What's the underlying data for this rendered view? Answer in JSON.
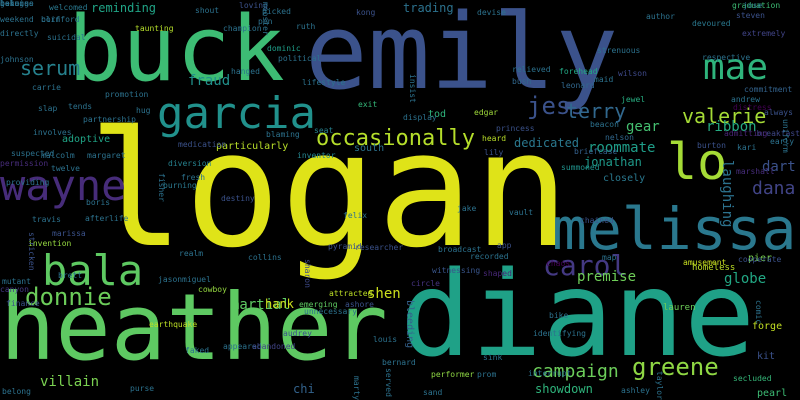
{
  "words": [
    {
      "text": "logan",
      "color": "#dfe318",
      "vertical": false
    },
    {
      "text": "diane",
      "color": "#1fa187",
      "vertical": false
    },
    {
      "text": "emily",
      "color": "#3b528b",
      "vertical": false
    },
    {
      "text": "heather",
      "color": "#5ec962",
      "vertical": false
    },
    {
      "text": "buck",
      "color": "#3dbc74",
      "vertical": false
    },
    {
      "text": "melissa",
      "color": "#2a788e",
      "vertical": false
    },
    {
      "text": "garcia",
      "color": "#21918c",
      "vertical": false
    },
    {
      "text": "wayne",
      "color": "#472c7a",
      "vertical": false
    },
    {
      "text": "bala",
      "color": "#5ec962",
      "vertical": false
    },
    {
      "text": "lo",
      "color": "#a5db36",
      "vertical": false
    },
    {
      "text": "mae",
      "color": "#2fb47c",
      "vertical": false
    },
    {
      "text": "carol",
      "color": "#443983",
      "vertical": false
    },
    {
      "text": "greene",
      "color": "#8fd744",
      "vertical": false
    },
    {
      "text": "donnie",
      "color": "#6ccd5a",
      "vertical": false
    },
    {
      "text": "occasionally",
      "color": "#b5de2b",
      "vertical": false
    },
    {
      "text": "jess",
      "color": "#3b528b",
      "vertical": false
    },
    {
      "text": "terry",
      "color": "#31688e",
      "vertical": false
    },
    {
      "text": "valerie",
      "color": "#a5db36",
      "vertical": false
    },
    {
      "text": "dana",
      "color": "#414487",
      "vertical": false
    },
    {
      "text": "serum",
      "color": "#26828e",
      "vertical": false
    },
    {
      "text": "laughing",
      "color": "#2c728e",
      "vertical": true
    },
    {
      "text": "campaign",
      "color": "#6ccd5a",
      "vertical": false
    },
    {
      "text": "villain",
      "color": "#7ad151",
      "vertical": false
    },
    {
      "text": "martial",
      "color": "#5ec962",
      "vertical": false
    },
    {
      "text": "shen",
      "color": "#cde11d",
      "vertical": false
    },
    {
      "text": "dart",
      "color": "#3b528b",
      "vertical": false
    },
    {
      "text": "fraud",
      "color": "#21918c",
      "vertical": false
    },
    {
      "text": "roommate",
      "color": "#1f9e89",
      "vertical": false
    },
    {
      "text": "jonathan",
      "color": "#1f9a8a",
      "vertical": false
    },
    {
      "text": "dedicated",
      "color": "#2a788e",
      "vertical": false
    },
    {
      "text": "premise",
      "color": "#6ece58",
      "vertical": false
    },
    {
      "text": "globe",
      "color": "#22a884",
      "vertical": false
    },
    {
      "text": "gear",
      "color": "#44bf70",
      "vertical": false
    },
    {
      "text": "ribbon",
      "color": "#25ab82",
      "vertical": false
    },
    {
      "text": "trading",
      "color": "#2c728e",
      "vertical": false
    },
    {
      "text": "reminding",
      "color": "#20a486",
      "vertical": false
    },
    {
      "text": "showdown",
      "color": "#2fb47c",
      "vertical": false
    },
    {
      "text": "hank",
      "color": "#cde11d",
      "vertical": false
    },
    {
      "text": "chi",
      "color": "#33638d",
      "vertical": false
    },
    {
      "text": "bleeding",
      "color": "#34618d",
      "vertical": true
    },
    {
      "text": "particularly",
      "color": "#b8de29",
      "vertical": false
    },
    {
      "text": "adoptive",
      "color": "#20a486",
      "vertical": false
    },
    {
      "text": "welcomed",
      "color": "#2a788e",
      "vertical": false
    },
    {
      "text": "dominic",
      "color": "#1f9e89",
      "vertical": false
    },
    {
      "text": "marshall",
      "color": "#472d7b",
      "vertical": false
    },
    {
      "text": "closely",
      "color": "#2a788e",
      "vertical": false
    },
    {
      "text": "pier",
      "color": "#7ad151",
      "vertical": false
    },
    {
      "text": "kit",
      "color": "#3b528b",
      "vertical": false
    },
    {
      "text": "forge",
      "color": "#c2df23",
      "vertical": false
    },
    {
      "text": "pearl",
      "color": "#3dbc74",
      "vertical": false
    },
    {
      "text": "secluded",
      "color": "#35b779",
      "vertical": false
    },
    {
      "text": "homeless",
      "color": "#bddf26",
      "vertical": false
    },
    {
      "text": "amusement",
      "color": "#c8e020",
      "vertical": false
    },
    {
      "text": "lauren",
      "color": "#6ece58",
      "vertical": false
    },
    {
      "text": "briefcase",
      "color": "#34618d",
      "vertical": false
    },
    {
      "text": "summoned",
      "color": "#20928c",
      "vertical": false
    },
    {
      "text": "beacon",
      "color": "#2c728e",
      "vertical": false
    },
    {
      "text": "nelson",
      "color": "#31688e",
      "vertical": false
    },
    {
      "text": "burton",
      "color": "#3b528b",
      "vertical": false
    },
    {
      "text": "kari",
      "color": "#2c728e",
      "vertical": false
    },
    {
      "text": "breakfast",
      "color": "#3f4788",
      "vertical": false
    },
    {
      "text": "admitting",
      "color": "#482475",
      "vertical": false
    },
    {
      "text": "distress",
      "color": "#440154",
      "vertical": false
    },
    {
      "text": "andrew",
      "color": "#2c728e",
      "vertical": false
    },
    {
      "text": "commitment",
      "color": "#33638d",
      "vertical": false
    },
    {
      "text": "respective",
      "color": "#2c728e",
      "vertical": false
    },
    {
      "text": "extremely",
      "color": "#414487",
      "vertical": false
    },
    {
      "text": "steven",
      "color": "#3b528b",
      "vertical": false
    },
    {
      "text": "graduation",
      "color": "#3dbc74",
      "vertical": false
    },
    {
      "text": "devoured",
      "color": "#2a788e",
      "vertical": false
    },
    {
      "text": "author",
      "color": "#2c728e",
      "vertical": false
    },
    {
      "text": "wilson",
      "color": "#3e4989",
      "vertical": false
    },
    {
      "text": "jewel",
      "color": "#27ad81",
      "vertical": false
    },
    {
      "text": "maid",
      "color": "#2c728e",
      "vertical": false
    },
    {
      "text": "forehead",
      "color": "#22a884",
      "vertical": false
    },
    {
      "text": "leonard",
      "color": "#31688e",
      "vertical": false
    },
    {
      "text": "bush",
      "color": "#31688e",
      "vertical": false
    },
    {
      "text": "relieved",
      "color": "#2c728e",
      "vertical": false
    },
    {
      "text": "devise",
      "color": "#2c728e",
      "vertical": false
    },
    {
      "text": "tod",
      "color": "#2fb47c",
      "vertical": false
    },
    {
      "text": "edgar",
      "color": "#9fda3a",
      "vertical": false
    },
    {
      "text": "display",
      "color": "#2c728e",
      "vertical": false
    },
    {
      "text": "princess",
      "color": "#3b528b",
      "vertical": false
    },
    {
      "text": "exit",
      "color": "#35b779",
      "vertical": false
    },
    {
      "text": "heard",
      "color": "#b8de29",
      "vertical": false
    },
    {
      "text": "lily",
      "color": "#3b528b",
      "vertical": false
    },
    {
      "text": "south",
      "color": "#2c728e",
      "vertical": false
    },
    {
      "text": "inventor",
      "color": "#25858e",
      "vertical": false
    },
    {
      "text": "seat",
      "color": "#26828e",
      "vertical": false
    },
    {
      "text": "medication",
      "color": "#3b528b",
      "vertical": false
    },
    {
      "text": "diversion",
      "color": "#26828e",
      "vertical": false
    },
    {
      "text": "burning",
      "color": "#2a788e",
      "vertical": false
    },
    {
      "text": "felix",
      "color": "#2c728e",
      "vertical": false
    },
    {
      "text": "jake",
      "color": "#2c728e",
      "vertical": false
    },
    {
      "text": "vault",
      "color": "#2c728e",
      "vertical": false
    },
    {
      "text": "app",
      "color": "#3b528b",
      "vertical": false
    },
    {
      "text": "broadcast",
      "color": "#2c728e",
      "vertical": false
    },
    {
      "text": "recorded",
      "color": "#2c728e",
      "vertical": false
    },
    {
      "text": "circle",
      "color": "#46337f",
      "vertical": false
    },
    {
      "text": "witnessing",
      "color": "#39568c",
      "vertical": false
    },
    {
      "text": "shaped",
      "color": "#482878",
      "vertical": false
    },
    {
      "text": "sharon",
      "color": "#3e4989",
      "vertical": true
    },
    {
      "text": "collins",
      "color": "#2c728e",
      "vertical": false
    },
    {
      "text": "realm",
      "color": "#2c728e",
      "vertical": false
    },
    {
      "text": "jason",
      "color": "#2c728e",
      "vertical": false
    },
    {
      "text": "miguel",
      "color": "#2c728e",
      "vertical": false
    },
    {
      "text": "cowboy",
      "color": "#95d840",
      "vertical": false
    },
    {
      "text": "earthquake",
      "color": "#bddf26",
      "vertical": false
    },
    {
      "text": "attracted",
      "color": "#bddf26",
      "vertical": false
    },
    {
      "text": "ashore",
      "color": "#3b528b",
      "vertical": false
    },
    {
      "text": "unnecessary",
      "color": "#2c728e",
      "vertical": false
    },
    {
      "text": "emerging",
      "color": "#5ec962",
      "vertical": false
    },
    {
      "text": "appeared",
      "color": "#2c728e",
      "vertical": false
    },
    {
      "text": "abandoned",
      "color": "#414487",
      "vertical": false
    },
    {
      "text": "audrey",
      "color": "#3b528b",
      "vertical": false
    },
    {
      "text": "faked",
      "color": "#2c728e",
      "vertical": false
    },
    {
      "text": "marty",
      "color": "#2c728e",
      "vertical": true
    },
    {
      "text": "served",
      "color": "#2c728e",
      "vertical": true
    },
    {
      "text": "bernard",
      "color": "#2c728e",
      "vertical": false
    },
    {
      "text": "performer",
      "color": "#8fd744",
      "vertical": false
    },
    {
      "text": "sand",
      "color": "#2c728e",
      "vertical": false
    },
    {
      "text": "prom",
      "color": "#2c728e",
      "vertical": false
    },
    {
      "text": "sink",
      "color": "#2c728e",
      "vertical": false
    },
    {
      "text": "interrupt",
      "color": "#2c728e",
      "vertical": false
    },
    {
      "text": "identifying",
      "color": "#2c728e",
      "vertical": false
    },
    {
      "text": "bike",
      "color": "#2c728e",
      "vertical": false
    },
    {
      "text": "purse",
      "color": "#2c728e",
      "vertical": false
    },
    {
      "text": "belong",
      "color": "#2c728e",
      "vertical": false
    },
    {
      "text": "mutant",
      "color": "#2c728e",
      "vertical": false
    },
    {
      "text": "canyon",
      "color": "#443983",
      "vertical": false
    },
    {
      "text": "finance",
      "color": "#3b528b",
      "vertical": false
    },
    {
      "text": "invention",
      "color": "#95d840",
      "vertical": false
    },
    {
      "text": "brett",
      "color": "#2c728e",
      "vertical": false
    },
    {
      "text": "stricken",
      "color": "#3b528b",
      "vertical": true
    },
    {
      "text": "marissa",
      "color": "#3b528b",
      "vertical": false
    },
    {
      "text": "afterlife",
      "color": "#2c728e",
      "vertical": false
    },
    {
      "text": "boris",
      "color": "#2c728e",
      "vertical": false
    },
    {
      "text": "travis",
      "color": "#2c728e",
      "vertical": false
    },
    {
      "text": "providing",
      "color": "#2c728e",
      "vertical": false
    },
    {
      "text": "permission",
      "color": "#472c7a",
      "vertical": false
    },
    {
      "text": "suspected",
      "color": "#2c728e",
      "vertical": false
    },
    {
      "text": "malcolm",
      "color": "#2c728e",
      "vertical": false
    },
    {
      "text": "margaret",
      "color": "#2c728e",
      "vertical": false
    },
    {
      "text": "twelve",
      "color": "#2c728e",
      "vertical": false
    },
    {
      "text": "involves",
      "color": "#2c728e",
      "vertical": false
    },
    {
      "text": "carrie",
      "color": "#2c728e",
      "vertical": false
    },
    {
      "text": "tends",
      "color": "#2c728e",
      "vertical": false
    },
    {
      "text": "partnership",
      "color": "#2c728e",
      "vertical": false
    },
    {
      "text": "slap",
      "color": "#2c728e",
      "vertical": false
    },
    {
      "text": "johnson",
      "color": "#2c728e",
      "vertical": false
    },
    {
      "text": "directly",
      "color": "#2c728e",
      "vertical": false
    },
    {
      "text": "suicidal",
      "color": "#2c728e",
      "vertical": false
    },
    {
      "text": "weekend",
      "color": "#2c728e",
      "vertical": false
    },
    {
      "text": "clifford",
      "color": "#2c728e",
      "vertical": false
    },
    {
      "text": "born",
      "color": "#2c728e",
      "vertical": false
    },
    {
      "text": "taunting",
      "color": "#b5de2b",
      "vertical": false
    },
    {
      "text": "hug",
      "color": "#2c728e",
      "vertical": false
    },
    {
      "text": "promotion",
      "color": "#2c728e",
      "vertical": false
    },
    {
      "text": "shout",
      "color": "#2c728e",
      "vertical": false
    },
    {
      "text": "champion",
      "color": "#2c728e",
      "vertical": false
    },
    {
      "text": "loving",
      "color": "#3b528b",
      "vertical": false
    },
    {
      "text": "picked",
      "color": "#2c728e",
      "vertical": false
    },
    {
      "text": "pen",
      "color": "#2c728e",
      "vertical": false
    },
    {
      "text": "ruth",
      "color": "#2c728e",
      "vertical": false
    },
    {
      "text": "hanged",
      "color": "#2c728e",
      "vertical": false
    },
    {
      "text": "political",
      "color": "#2c728e",
      "vertical": false
    },
    {
      "text": "lifestyle",
      "color": "#2c728e",
      "vertical": false
    },
    {
      "text": "blaming",
      "color": "#2c728e",
      "vertical": false
    },
    {
      "text": "fisher",
      "color": "#2c728e",
      "vertical": true
    },
    {
      "text": "fresh",
      "color": "#2c728e",
      "vertical": false
    },
    {
      "text": "insist",
      "color": "#2c728e",
      "vertical": true
    },
    {
      "text": "kong",
      "color": "#3b528b",
      "vertical": false
    },
    {
      "text": "mooster",
      "color": "#2c728e",
      "vertical": true
    },
    {
      "text": "early",
      "color": "#2c728e",
      "vertical": false
    },
    {
      "text": "uniform",
      "color": "#2c728e",
      "vertical": true
    },
    {
      "text": "always",
      "color": "#3b528b",
      "vertical": false
    },
    {
      "text": "cooperate",
      "color": "#3b528b",
      "vertical": false
    },
    {
      "text": "comic",
      "color": "#2c728e",
      "vertical": true
    },
    {
      "text": "taylor",
      "color": "#2c728e",
      "vertical": true
    },
    {
      "text": "ashley",
      "color": "#2c728e",
      "vertical": false
    },
    {
      "text": "destiny",
      "color": "#3b528b",
      "vertical": false
    },
    {
      "text": "pyramid",
      "color": "#3b528b",
      "vertical": false
    },
    {
      "text": "researcher",
      "color": "#3b528b",
      "vertical": false
    },
    {
      "text": "jose",
      "color": "#2c728e",
      "vertical": false
    },
    {
      "text": "strenuous",
      "color": "#2c728e",
      "vertical": false
    },
    {
      "text": "chained",
      "color": "#3b528b",
      "vertical": false
    },
    {
      "text": "chaos",
      "color": "#440154",
      "vertical": false
    },
    {
      "text": "louis",
      "color": "#2c728e",
      "vertical": false
    },
    {
      "text": "map",
      "color": "#2c728e",
      "vertical": false
    },
    {
      "text": "beings",
      "color": "#2c728e",
      "vertical": false
    },
    {
      "text": "lake",
      "color": "#2c728e",
      "vertical": false
    },
    {
      "text": "genuine",
      "color": "#2c728e",
      "vertical": false
    },
    {
      "text": "belongs",
      "color": "#2c728e",
      "vertical": false
    }
  ]
}
